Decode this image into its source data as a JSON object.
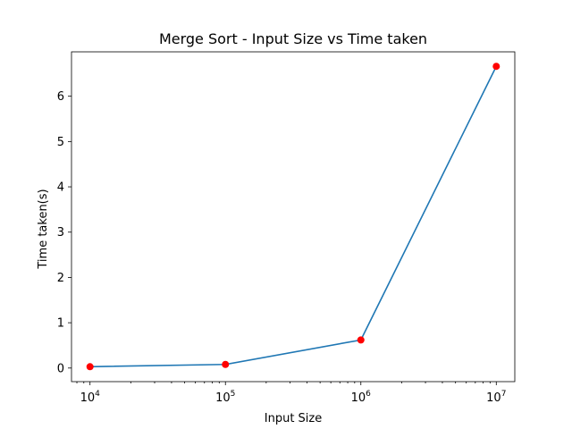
{
  "chart_data": {
    "type": "line",
    "title": "Merge Sort - Input Size vs Time taken",
    "xlabel": "Input Size",
    "ylabel": "Time taken(s)",
    "x_scale": "log",
    "xlim": [
      7300,
      13700000
    ],
    "ylim": [
      -0.3,
      6.98
    ],
    "x_ticks": [
      {
        "value": 10000,
        "base": "10",
        "exp": "4"
      },
      {
        "value": 100000,
        "base": "10",
        "exp": "5"
      },
      {
        "value": 1000000,
        "base": "10",
        "exp": "6"
      },
      {
        "value": 10000000,
        "base": "10",
        "exp": "7"
      }
    ],
    "y_ticks": [
      0,
      1,
      2,
      3,
      4,
      5,
      6
    ],
    "grid": false,
    "series": [
      {
        "x": [
          10000,
          100000,
          1000000,
          10000000
        ],
        "y": [
          0.03,
          0.08,
          0.62,
          6.66
        ],
        "line_color": "#1f77b4",
        "marker_color": "#ff0000"
      }
    ]
  }
}
